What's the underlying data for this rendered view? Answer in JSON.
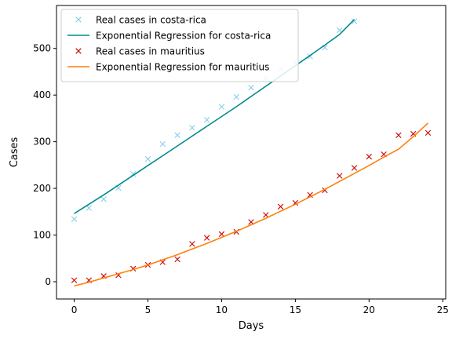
{
  "chart_data": {
    "type": "line",
    "xlabel": "Days",
    "ylabel": "Cases",
    "xlim": [
      -1.2,
      25.2
    ],
    "ylim": [
      -37,
      592
    ],
    "xticks": [
      0,
      5,
      10,
      15,
      20,
      25
    ],
    "yticks": [
      0,
      100,
      200,
      300,
      400,
      500
    ],
    "grid": false,
    "legend_position": "top-left",
    "series": [
      {
        "name": "Real cases in costa-rica",
        "style": "markers",
        "marker": "x",
        "color": "#87ceeb",
        "x": [
          0,
          1,
          2,
          3,
          4,
          5,
          6,
          7,
          8,
          9,
          10,
          11,
          12,
          13,
          14,
          15,
          16,
          17,
          18,
          19
        ],
        "y": [
          134,
          158,
          177,
          201,
          231,
          263,
          295,
          314,
          330,
          347,
          375,
          396,
          416,
          436,
          456,
          470,
          483,
          502,
          539,
          558
        ]
      },
      {
        "name": "Exponential Regression for costa-rica",
        "style": "line",
        "color": "#008b8b",
        "x": [
          0,
          1,
          2,
          3,
          4,
          5,
          6,
          7,
          8,
          9,
          10,
          11,
          12,
          13,
          14,
          15,
          16,
          17,
          18,
          19
        ],
        "y": [
          146,
          166,
          186,
          207,
          228,
          249,
          270,
          291,
          312,
          333,
          354,
          375,
          397,
          419,
          441,
          463,
          485,
          507,
          530,
          562
        ]
      },
      {
        "name": "Real cases in mauritius",
        "style": "markers",
        "marker": "x",
        "color": "#cc0000",
        "x": [
          0,
          1,
          2,
          3,
          4,
          5,
          6,
          7,
          8,
          9,
          10,
          11,
          12,
          13,
          14,
          15,
          16,
          17,
          18,
          19,
          20,
          21,
          22,
          23,
          24
        ],
        "y": [
          3,
          3,
          12,
          14,
          28,
          36,
          42,
          48,
          81,
          94,
          102,
          107,
          128,
          143,
          161,
          169,
          186,
          196,
          227,
          244,
          268,
          273,
          314,
          317,
          319
        ]
      },
      {
        "name": "Exponential Regression for mauritius",
        "style": "line",
        "color": "#ff7f0e",
        "x": [
          0,
          1,
          2,
          3,
          4,
          5,
          6,
          7,
          8,
          9,
          10,
          11,
          12,
          13,
          14,
          15,
          16,
          17,
          18,
          19,
          20,
          21,
          22,
          23,
          24
        ],
        "y": [
          -9,
          -1,
          8,
          17,
          26,
          36,
          47,
          58,
          70,
          82,
          95,
          108,
          122,
          136,
          151,
          166,
          182,
          198,
          215,
          232,
          249,
          267,
          284,
          311,
          340
        ]
      }
    ]
  }
}
